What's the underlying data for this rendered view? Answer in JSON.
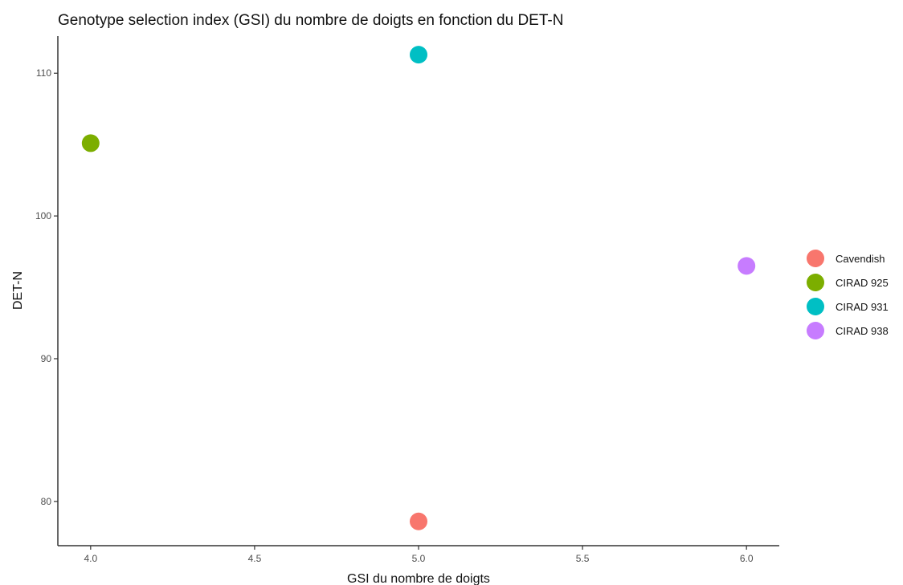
{
  "chart_data": {
    "type": "scatter",
    "title": "Genotype selection index (GSI) du nombre de doigts en fonction du DET-N",
    "xlabel": "GSI du nombre de doigts",
    "ylabel": "DET-N",
    "xlim": [
      3.9,
      6.1
    ],
    "ylim": [
      76.9,
      112.6
    ],
    "x_ticks": [
      4.0,
      4.5,
      5.0,
      5.5,
      6.0
    ],
    "y_ticks": [
      80,
      90,
      100,
      110
    ],
    "grid": false,
    "legend_position": "right",
    "series": [
      {
        "name": "Cavendish",
        "color": "#F8766D",
        "points": [
          {
            "x": 5.0,
            "y": 78.6
          }
        ]
      },
      {
        "name": "CIRAD 925",
        "color": "#7CAE00",
        "points": [
          {
            "x": 4.0,
            "y": 105.1
          }
        ]
      },
      {
        "name": "CIRAD 931",
        "color": "#00BFC4",
        "points": [
          {
            "x": 5.0,
            "y": 111.3
          }
        ]
      },
      {
        "name": "CIRAD 938",
        "color": "#C77CFF",
        "points": [
          {
            "x": 6.0,
            "y": 96.5
          }
        ]
      }
    ]
  }
}
